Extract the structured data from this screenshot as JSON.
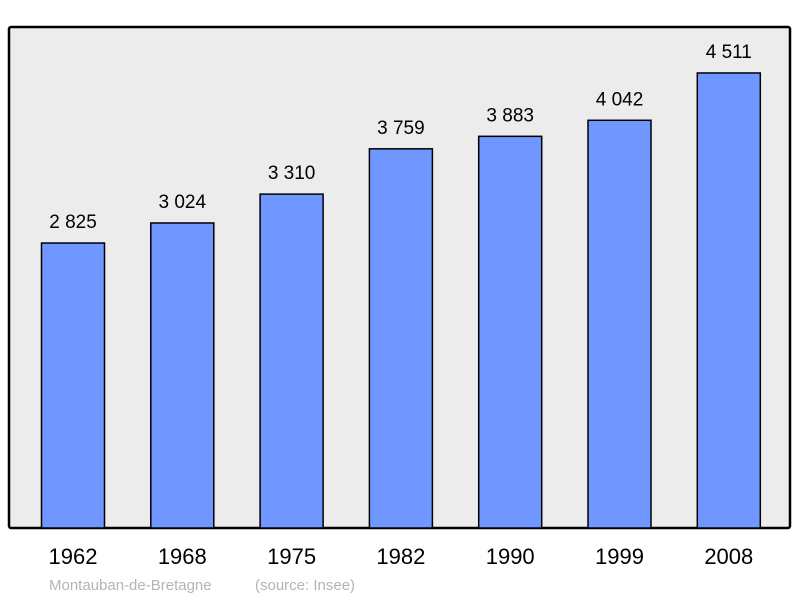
{
  "chart_data": {
    "type": "bar",
    "categories": [
      "1962",
      "1968",
      "1975",
      "1982",
      "1990",
      "1999",
      "2008"
    ],
    "values": [
      2825,
      3024,
      3310,
      3759,
      3883,
      4042,
      4511
    ],
    "data_labels": [
      "2 825",
      "3 024",
      "3 310",
      "3 759",
      "3 883",
      "4 042",
      "4 511"
    ],
    "title": "",
    "xlabel": "",
    "ylabel": "",
    "grid": false,
    "colors": {
      "bar": "#7097ff",
      "background": "#ececec",
      "frame": "#000000"
    }
  },
  "footer": {
    "place": "Montauban-de-Bretagne",
    "source": "(source: Insee)"
  }
}
